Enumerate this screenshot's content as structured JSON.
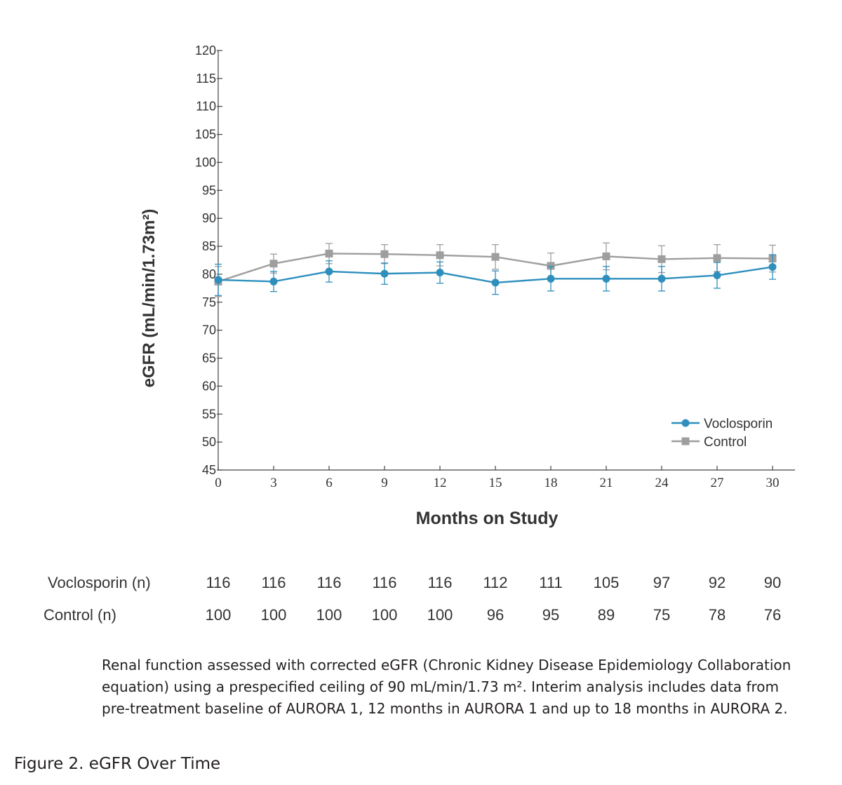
{
  "chart_data": {
    "type": "line",
    "xlabel": "Months on Study",
    "ylabel": "eGFR (mL/min/1.73m²)",
    "x": [
      0,
      3,
      6,
      9,
      12,
      15,
      18,
      21,
      24,
      27,
      30
    ],
    "x_ticks": [
      "0",
      "3",
      "6",
      "9",
      "12",
      "15",
      "18",
      "21",
      "24",
      "27",
      "30"
    ],
    "ylim": [
      45,
      120
    ],
    "y_ticks": [
      "120",
      "115",
      "110",
      "105",
      "100",
      "95",
      "90",
      "85",
      "80",
      "75",
      "70",
      "65",
      "60",
      "55",
      "50",
      "45"
    ],
    "grid": false,
    "legend_position": "bottom-right",
    "series": [
      {
        "name": "Voclosporin",
        "color": "#2e8fbd",
        "marker": "circle",
        "values": [
          79.0,
          78.7,
          80.5,
          80.1,
          80.3,
          78.5,
          79.2,
          79.2,
          79.2,
          79.8,
          81.3
        ],
        "error_low": [
          76.2,
          76.9,
          78.6,
          78.2,
          78.4,
          76.4,
          77.0,
          77.0,
          77.0,
          77.5,
          79.1
        ],
        "error_high": [
          81.8,
          80.5,
          82.4,
          82.0,
          82.2,
          80.6,
          81.4,
          81.4,
          81.4,
          82.1,
          83.5
        ]
      },
      {
        "name": "Control",
        "color": "#9e9e9e",
        "marker": "square",
        "values": [
          78.7,
          81.9,
          83.7,
          83.6,
          83.4,
          83.1,
          81.5,
          83.2,
          82.7,
          82.9,
          82.8
        ],
        "error_low": [
          76.0,
          80.2,
          81.9,
          81.9,
          81.5,
          80.9,
          79.2,
          80.8,
          80.3,
          80.5,
          80.4
        ],
        "error_high": [
          81.4,
          83.6,
          85.5,
          85.3,
          85.3,
          85.3,
          83.8,
          85.6,
          85.1,
          85.3,
          85.2
        ]
      }
    ]
  },
  "risk_table": {
    "rows": [
      {
        "label": "Voclosporin (n)",
        "values": [
          "116",
          "116",
          "116",
          "116",
          "116",
          "112",
          "111",
          "105",
          "97",
          "92",
          "90"
        ]
      },
      {
        "label": "Control (n)",
        "values": [
          "100",
          "100",
          "100",
          "100",
          "100",
          "96",
          "95",
          "89",
          "75",
          "78",
          "76"
        ]
      }
    ]
  },
  "caption": "Renal function assessed with corrected eGFR (Chronic Kidney Disease Epidemiology Collaboration equation) using a prespecified ceiling of 90 mL/min/1.73 m². Interim analysis includes data from pre-treatment baseline of AURORA 1, 12 months in AURORA 1 and up to 18 months in AURORA 2.",
  "figure_title": "Figure 2. eGFR Over Time"
}
